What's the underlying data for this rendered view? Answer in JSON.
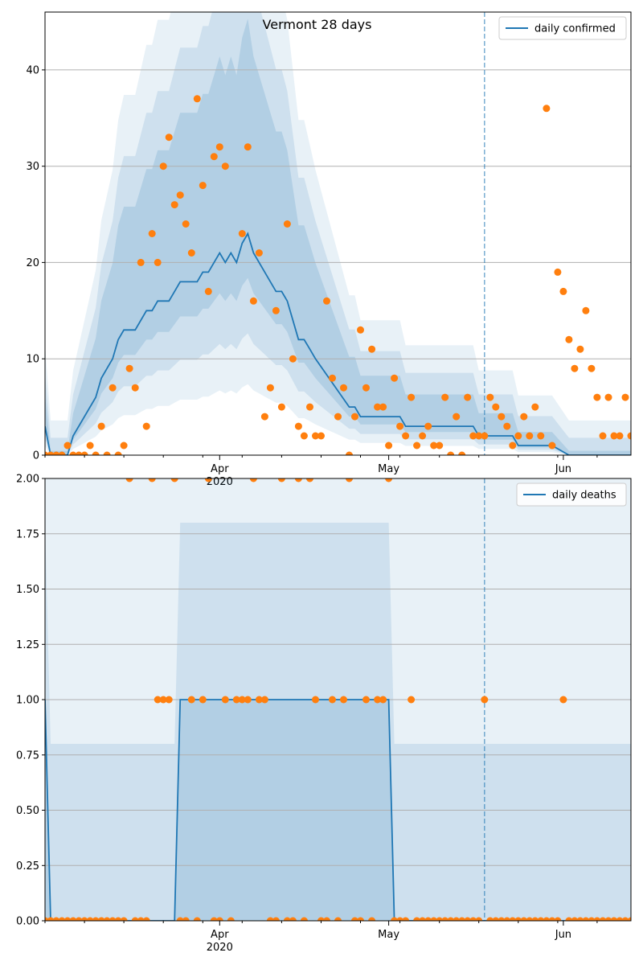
{
  "chart_data": [
    {
      "type": "line",
      "title": "Vermont 28 days",
      "xlabel": "",
      "ylabel": "",
      "x_range": [
        "2020-03-01",
        "2020-06-13"
      ],
      "ylim": [
        0,
        46
      ],
      "yticks": [
        0,
        10,
        20,
        30,
        40
      ],
      "ytick_labels": [
        "0",
        "10",
        "20",
        "30",
        "40"
      ],
      "xticks": [
        {
          "date": "2020-04-01",
          "label": "Apr",
          "sublabel": "2020"
        },
        {
          "date": "2020-05-01",
          "label": "May",
          "sublabel": ""
        },
        {
          "date": "2020-06-01",
          "label": "Jun",
          "sublabel": ""
        }
      ],
      "forecast_start": "2020-05-18",
      "grid": "horizontal",
      "legend": {
        "placement": "top-right",
        "entries": [
          "daily confirmed"
        ]
      },
      "colors": {
        "line": "#1f77b4",
        "points": "#ff7f0e",
        "band": "#1f77b4"
      },
      "series": [
        {
          "name": "daily confirmed",
          "kind": "line",
          "x": [
            "2020-03-01",
            "2020-03-02",
            "2020-03-05",
            "2020-03-06",
            "2020-03-10",
            "2020-03-11",
            "2020-03-13",
            "2020-03-14",
            "2020-03-15",
            "2020-03-17",
            "2020-03-19",
            "2020-03-20",
            "2020-03-21",
            "2020-03-23",
            "2020-03-24",
            "2020-03-25",
            "2020-03-27",
            "2020-03-28",
            "2020-03-29",
            "2020-03-30",
            "2020-03-31",
            "2020-04-01",
            "2020-04-02",
            "2020-04-03",
            "2020-04-04",
            "2020-04-05",
            "2020-04-06",
            "2020-04-07",
            "2020-04-09",
            "2020-04-11",
            "2020-04-12",
            "2020-04-13",
            "2020-04-14",
            "2020-04-15",
            "2020-04-16",
            "2020-04-17",
            "2020-04-18",
            "2020-04-24",
            "2020-04-25",
            "2020-04-26",
            "2020-04-30",
            "2020-05-03",
            "2020-05-04",
            "2020-05-10",
            "2020-05-16",
            "2020-05-17",
            "2020-05-18",
            "2020-05-23",
            "2020-05-24",
            "2020-05-30",
            "2020-06-02",
            "2020-06-13"
          ],
          "y": [
            3,
            0,
            0,
            2,
            6,
            8,
            10,
            12,
            13,
            13,
            15,
            15,
            16,
            16,
            17,
            18,
            18,
            18,
            19,
            19,
            20,
            21,
            20,
            21,
            20,
            22,
            23,
            21,
            19,
            17,
            17,
            16,
            14,
            12,
            12,
            11,
            10,
            5,
            5,
            4,
            4,
            4,
            3,
            3,
            3,
            2,
            2,
            2,
            1,
            1,
            0,
            0
          ]
        },
        {
          "name": "",
          "kind": "points",
          "x": [
            "2020-03-01",
            "2020-03-02",
            "2020-03-03",
            "2020-03-04",
            "2020-03-05",
            "2020-03-06",
            "2020-03-07",
            "2020-03-08",
            "2020-03-09",
            "2020-03-10",
            "2020-03-11",
            "2020-03-12",
            "2020-03-13",
            "2020-03-14",
            "2020-03-15",
            "2020-03-16",
            "2020-03-17",
            "2020-03-18",
            "2020-03-19",
            "2020-03-20",
            "2020-03-21",
            "2020-03-22",
            "2020-03-23",
            "2020-03-24",
            "2020-03-25",
            "2020-03-26",
            "2020-03-27",
            "2020-03-28",
            "2020-03-29",
            "2020-03-30",
            "2020-03-31",
            "2020-04-01",
            "2020-04-02",
            "2020-04-05",
            "2020-04-06",
            "2020-04-07",
            "2020-04-08",
            "2020-04-09",
            "2020-04-10",
            "2020-04-11",
            "2020-04-12",
            "2020-04-13",
            "2020-04-14",
            "2020-04-15",
            "2020-04-16",
            "2020-04-17",
            "2020-04-18",
            "2020-04-19",
            "2020-04-20",
            "2020-04-21",
            "2020-04-22",
            "2020-04-23",
            "2020-04-24",
            "2020-04-25",
            "2020-04-26",
            "2020-04-27",
            "2020-04-28",
            "2020-04-29",
            "2020-04-30",
            "2020-05-01",
            "2020-05-02",
            "2020-05-03",
            "2020-05-04",
            "2020-05-05",
            "2020-05-06",
            "2020-05-07",
            "2020-05-08",
            "2020-05-09",
            "2020-05-10",
            "2020-05-11",
            "2020-05-12",
            "2020-05-13",
            "2020-05-14",
            "2020-05-15",
            "2020-05-16",
            "2020-05-17",
            "2020-05-18",
            "2020-05-19",
            "2020-05-20",
            "2020-05-21",
            "2020-05-22",
            "2020-05-23",
            "2020-05-24",
            "2020-05-25",
            "2020-05-26",
            "2020-05-27",
            "2020-05-28",
            "2020-05-29",
            "2020-05-30",
            "2020-05-31",
            "2020-06-01",
            "2020-06-02",
            "2020-06-03",
            "2020-06-04",
            "2020-06-05",
            "2020-06-06",
            "2020-06-07",
            "2020-06-08",
            "2020-06-09",
            "2020-06-10",
            "2020-06-11",
            "2020-06-12",
            "2020-06-13"
          ],
          "y": [
            0,
            0,
            0,
            0,
            1,
            0,
            0,
            0,
            1,
            0,
            3,
            0,
            7,
            0,
            1,
            9,
            7,
            20,
            3,
            23,
            20,
            30,
            33,
            26,
            27,
            24,
            21,
            37,
            28,
            17,
            31,
            32,
            30,
            23,
            32,
            16,
            21,
            4,
            7,
            15,
            5,
            24,
            10,
            3,
            2,
            5,
            2,
            2,
            16,
            8,
            4,
            7,
            0,
            4,
            13,
            7,
            11,
            5,
            5,
            1,
            8,
            3,
            2,
            6,
            1,
            2,
            3,
            1,
            1,
            6,
            0,
            4,
            0,
            6,
            2,
            2,
            2,
            6,
            5,
            4,
            3,
            1,
            2,
            4,
            2,
            5,
            2,
            36,
            1,
            19,
            17,
            12,
            9,
            11,
            15,
            9,
            6,
            2,
            6,
            2,
            2,
            6,
            2
          ]
        }
      ]
    },
    {
      "type": "line",
      "title": "",
      "xlabel": "",
      "ylabel": "",
      "x_range": [
        "2020-03-01",
        "2020-06-13"
      ],
      "ylim": [
        0,
        2
      ],
      "yticks": [
        0,
        0.25,
        0.5,
        0.75,
        1,
        1.25,
        1.5,
        1.75,
        2
      ],
      "ytick_labels": [
        "0.00",
        "0.25",
        "0.50",
        "0.75",
        "1.00",
        "1.25",
        "1.50",
        "1.75",
        "2.00"
      ],
      "xticks": [
        {
          "date": "2020-04-01",
          "label": "Apr",
          "sublabel": "2020"
        },
        {
          "date": "2020-05-01",
          "label": "May",
          "sublabel": ""
        },
        {
          "date": "2020-06-01",
          "label": "Jun",
          "sublabel": ""
        }
      ],
      "forecast_start": "2020-05-18",
      "grid": "horizontal",
      "legend": {
        "placement": "top-right",
        "entries": [
          "daily deaths"
        ]
      },
      "colors": {
        "line": "#1f77b4",
        "points": "#ff7f0e",
        "band": "#1f77b4"
      },
      "series": [
        {
          "name": "daily deaths",
          "kind": "line",
          "x": [
            "2020-03-01",
            "2020-03-02",
            "2020-03-24",
            "2020-03-25",
            "2020-05-01",
            "2020-05-02",
            "2020-06-13"
          ],
          "y": [
            1,
            0,
            0,
            1,
            1,
            0,
            0
          ]
        },
        {
          "name": "",
          "kind": "points",
          "x": [
            "2020-03-01",
            "2020-03-02",
            "2020-03-03",
            "2020-03-04",
            "2020-03-05",
            "2020-03-06",
            "2020-03-07",
            "2020-03-08",
            "2020-03-09",
            "2020-03-10",
            "2020-03-11",
            "2020-03-12",
            "2020-03-13",
            "2020-03-14",
            "2020-03-15",
            "2020-03-16",
            "2020-03-17",
            "2020-03-18",
            "2020-03-19",
            "2020-03-20",
            "2020-03-21",
            "2020-03-22",
            "2020-03-23",
            "2020-03-24",
            "2020-03-25",
            "2020-03-26",
            "2020-03-27",
            "2020-03-28",
            "2020-03-29",
            "2020-03-30",
            "2020-03-31",
            "2020-04-01",
            "2020-04-02",
            "2020-04-03",
            "2020-04-04",
            "2020-04-05",
            "2020-04-06",
            "2020-04-07",
            "2020-04-08",
            "2020-04-09",
            "2020-04-10",
            "2020-04-11",
            "2020-04-12",
            "2020-04-13",
            "2020-04-14",
            "2020-04-15",
            "2020-04-16",
            "2020-04-17",
            "2020-04-18",
            "2020-04-19",
            "2020-04-20",
            "2020-04-21",
            "2020-04-22",
            "2020-04-23",
            "2020-04-24",
            "2020-04-25",
            "2020-04-26",
            "2020-04-27",
            "2020-04-28",
            "2020-04-29",
            "2020-04-30",
            "2020-05-01",
            "2020-05-02",
            "2020-05-03",
            "2020-05-04",
            "2020-05-05",
            "2020-05-06",
            "2020-05-07",
            "2020-05-08",
            "2020-05-09",
            "2020-05-10",
            "2020-05-11",
            "2020-05-12",
            "2020-05-13",
            "2020-05-14",
            "2020-05-15",
            "2020-05-16",
            "2020-05-17",
            "2020-05-18",
            "2020-05-19",
            "2020-05-20",
            "2020-05-21",
            "2020-05-22",
            "2020-05-23",
            "2020-05-24",
            "2020-05-25",
            "2020-05-26",
            "2020-05-27",
            "2020-05-28",
            "2020-05-29",
            "2020-05-30",
            "2020-05-31",
            "2020-06-01",
            "2020-06-02",
            "2020-06-03",
            "2020-06-04",
            "2020-06-05",
            "2020-06-06",
            "2020-06-07",
            "2020-06-08",
            "2020-06-09",
            "2020-06-10",
            "2020-06-11",
            "2020-06-12",
            "2020-06-13"
          ],
          "y": [
            0,
            0,
            0,
            0,
            0,
            0,
            0,
            0,
            0,
            0,
            0,
            0,
            0,
            0,
            0,
            2,
            0,
            0,
            0,
            2,
            1,
            1,
            1,
            2,
            0,
            0,
            1,
            0,
            1,
            2,
            0,
            0,
            1,
            0,
            1,
            1,
            1,
            2,
            1,
            1,
            0,
            0,
            2,
            0,
            0,
            2,
            0,
            2,
            1,
            0,
            0,
            1,
            0,
            1,
            2,
            0,
            0,
            1,
            0,
            1,
            1,
            2,
            0,
            0,
            0,
            1,
            0,
            0,
            0,
            0,
            0,
            0,
            0,
            0,
            0,
            0,
            0,
            0,
            1,
            0,
            0,
            0,
            0,
            0,
            0,
            0,
            0,
            0,
            0,
            0,
            0,
            0,
            1,
            0,
            0,
            0,
            0,
            0,
            0,
            0,
            0,
            0,
            0,
            0,
            0
          ]
        }
      ]
    }
  ]
}
